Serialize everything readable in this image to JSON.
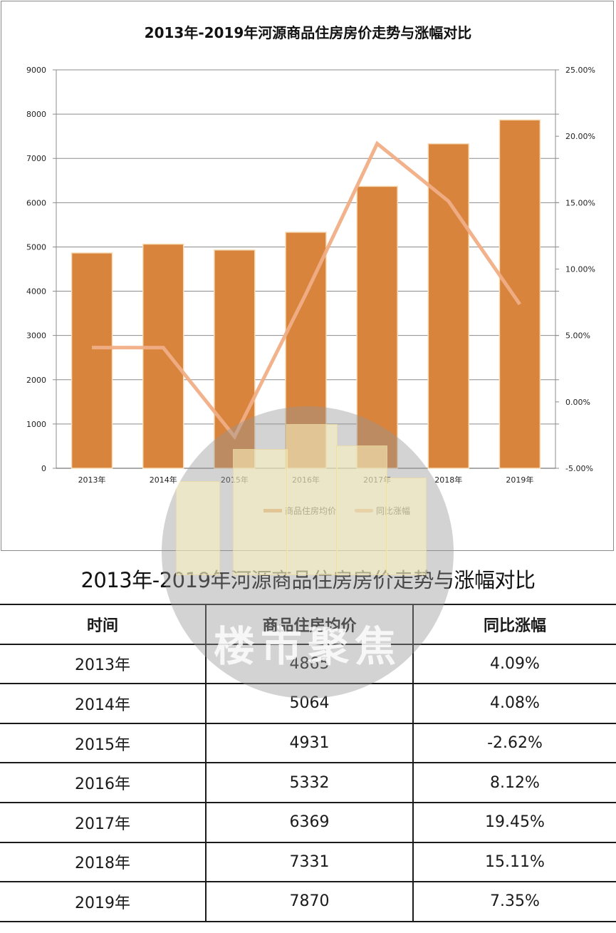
{
  "chart": {
    "title": "2013年-2019年河源商品住房房价走势与涨幅对比",
    "legend": {
      "bar_series_label": "商品住房均价",
      "line_series_label": "同比涨幅"
    },
    "colors": {
      "bar": "#D9843D",
      "bar_edge": "#F5DDB8",
      "line": "#F0AE86",
      "grid": "#8C8C8C"
    }
  },
  "chart_data": {
    "type": "bar+line",
    "title": "2013年-2019年河源商品住房房价走势与涨幅对比",
    "categories": [
      "2013年",
      "2014年",
      "2015年",
      "2016年",
      "2017年",
      "2018年",
      "2019年"
    ],
    "series": [
      {
        "name": "商品住房均价",
        "type": "bar",
        "axis": "left",
        "values": [
          4865,
          5064,
          4931,
          5332,
          6369,
          7331,
          7870
        ]
      },
      {
        "name": "同比涨幅",
        "type": "line",
        "axis": "right",
        "values": [
          4.09,
          4.08,
          -2.62,
          8.12,
          19.45,
          15.11,
          7.35
        ],
        "unit": "%"
      }
    ],
    "y_left": {
      "min": 0,
      "max": 9000,
      "ticks": [
        "0",
        "1000",
        "2000",
        "3000",
        "4000",
        "5000",
        "6000",
        "7000",
        "8000",
        "9000"
      ]
    },
    "y_right": {
      "min": -5,
      "max": 25,
      "ticks": [
        "-5.00%",
        "0.00%",
        "5.00%",
        "10.00%",
        "15.00%",
        "20.00%",
        "25.00%"
      ]
    },
    "xlabel": "",
    "ylabel": "",
    "grid": true,
    "legend_position": "bottom"
  },
  "table": {
    "title": "2013年-2019年河源商品住房房价走势与涨幅对比",
    "headers": [
      "时间",
      "商品住房均价",
      "同比涨幅"
    ],
    "rows": [
      [
        "2013年",
        "4865",
        "4.09%"
      ],
      [
        "2014年",
        "5064",
        "4.08%"
      ],
      [
        "2015年",
        "4931",
        "-2.62%"
      ],
      [
        "2016年",
        "5332",
        "8.12%"
      ],
      [
        "2017年",
        "6369",
        "19.45%"
      ],
      [
        "2018年",
        "7331",
        "15.11%"
      ],
      [
        "2019年",
        "7870",
        "7.35%"
      ]
    ]
  },
  "watermark": {
    "text": "楼市聚焦"
  }
}
